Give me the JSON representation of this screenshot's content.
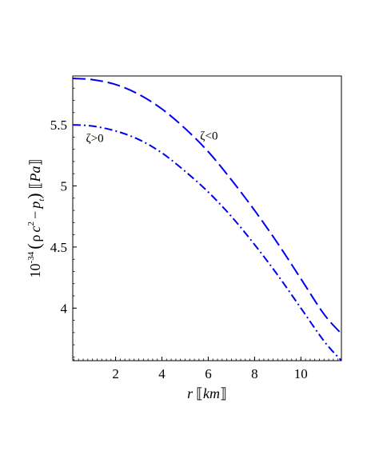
{
  "chart_data": {
    "type": "line",
    "title": "",
    "xlabel": {
      "var": "r",
      "unit": "km"
    },
    "ylabel": {
      "scale_base": "10",
      "scale_exp": "-34",
      "rho": "ρ",
      "c": "c",
      "c_exp": "2",
      "minus": "−",
      "p": "p",
      "p_sub": "t",
      "unit": "Pa"
    },
    "xlim": [
      0.15,
      11.75
    ],
    "ylim": [
      3.57,
      5.9
    ],
    "xticks": [
      2,
      4,
      6,
      8,
      10
    ],
    "yticks": [
      4,
      4.5,
      5,
      5.5
    ],
    "xtick_labels": [
      "2",
      "4",
      "6",
      "8",
      "10"
    ],
    "ytick_labels": [
      "4",
      "4.5",
      "5",
      "5.5"
    ],
    "grid": false,
    "legend": "none",
    "series": [
      {
        "label": "ζ<0",
        "style": "dash",
        "color": "#0000ee",
        "x": [
          0.15,
          1,
          2,
          3,
          4,
          5,
          6,
          7,
          8,
          9,
          10,
          11,
          11.75
        ],
        "y": [
          5.88,
          5.87,
          5.83,
          5.75,
          5.63,
          5.47,
          5.28,
          5.05,
          4.8,
          4.53,
          4.24,
          3.95,
          3.79
        ]
      },
      {
        "label": "ζ>0",
        "style": "dashdot",
        "color": "#0000ee",
        "x": [
          0.15,
          1,
          2,
          3,
          4,
          5,
          6,
          7,
          8,
          9,
          10,
          11,
          11.75
        ],
        "y": [
          5.5,
          5.49,
          5.45,
          5.38,
          5.27,
          5.12,
          4.95,
          4.75,
          4.52,
          4.27,
          4.0,
          3.73,
          3.57
        ]
      }
    ],
    "annotations": [
      {
        "text": "ζ<0",
        "x": 5.65,
        "y": 5.38
      },
      {
        "text": "ζ>0",
        "x": 0.72,
        "y": 5.36
      }
    ]
  }
}
